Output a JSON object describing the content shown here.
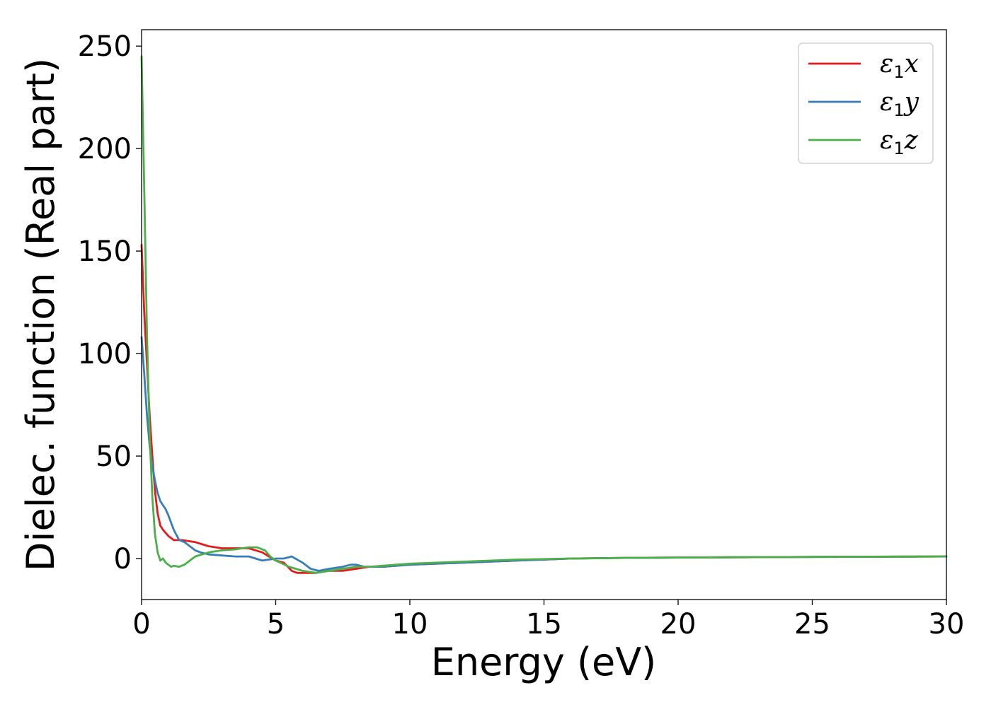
{
  "chart_data": {
    "type": "line",
    "xlabel": "Energy (eV)",
    "ylabel": "Dielec. function (Real part)",
    "xlim": [
      0,
      30
    ],
    "ylim": [
      -20,
      258
    ],
    "xticks": [
      0,
      5,
      10,
      15,
      20,
      25,
      30
    ],
    "yticks": [
      0,
      50,
      100,
      150,
      200,
      250
    ],
    "grid": false,
    "legend_position": "top-right",
    "series": [
      {
        "name": "ε1x",
        "legend": {
          "symbol": "ε",
          "sub": "1",
          "axis": "x"
        },
        "color": "#e41a1c",
        "points": [
          [
            0,
            153
          ],
          [
            0.1,
            120
          ],
          [
            0.2,
            95
          ],
          [
            0.3,
            70
          ],
          [
            0.4,
            50
          ],
          [
            0.5,
            33
          ],
          [
            0.6,
            22
          ],
          [
            0.7,
            16
          ],
          [
            0.8,
            14
          ],
          [
            1.0,
            11
          ],
          [
            1.2,
            9
          ],
          [
            1.5,
            9
          ],
          [
            2.0,
            8
          ],
          [
            2.5,
            6
          ],
          [
            3.0,
            5
          ],
          [
            3.5,
            5
          ],
          [
            4.0,
            5
          ],
          [
            4.5,
            3
          ],
          [
            5.0,
            -1
          ],
          [
            5.3,
            -2
          ],
          [
            5.6,
            -6
          ],
          [
            5.8,
            -7
          ],
          [
            6.0,
            -7
          ],
          [
            6.5,
            -7
          ],
          [
            7.0,
            -6
          ],
          [
            7.5,
            -6
          ],
          [
            8.0,
            -5
          ],
          [
            8.5,
            -4
          ],
          [
            9.0,
            -4
          ],
          [
            10,
            -3
          ],
          [
            12,
            -2
          ],
          [
            14,
            -1
          ],
          [
            16,
            0
          ],
          [
            18,
            0.3
          ],
          [
            20,
            0.5
          ],
          [
            25,
            0.8
          ],
          [
            30,
            1.0
          ]
        ]
      },
      {
        "name": "ε1y",
        "legend": {
          "symbol": "ε",
          "sub": "1",
          "axis": "y"
        },
        "color": "#377eb8",
        "points": [
          [
            0,
            108
          ],
          [
            0.1,
            90
          ],
          [
            0.2,
            70
          ],
          [
            0.3,
            55
          ],
          [
            0.4,
            45
          ],
          [
            0.5,
            38
          ],
          [
            0.6,
            32
          ],
          [
            0.7,
            28
          ],
          [
            0.8,
            26
          ],
          [
            0.9,
            24
          ],
          [
            1.0,
            21
          ],
          [
            1.2,
            14
          ],
          [
            1.4,
            9
          ],
          [
            1.6,
            8
          ],
          [
            1.8,
            6
          ],
          [
            2.0,
            4
          ],
          [
            2.2,
            3
          ],
          [
            2.5,
            2
          ],
          [
            3.0,
            1.5
          ],
          [
            3.5,
            1
          ],
          [
            4.0,
            1
          ],
          [
            4.5,
            -1
          ],
          [
            5.0,
            0
          ],
          [
            5.3,
            0
          ],
          [
            5.6,
            1
          ],
          [
            6.0,
            -2
          ],
          [
            6.3,
            -5
          ],
          [
            6.6,
            -6
          ],
          [
            7.0,
            -5
          ],
          [
            7.5,
            -4
          ],
          [
            7.8,
            -3
          ],
          [
            8.0,
            -3
          ],
          [
            8.3,
            -4
          ],
          [
            8.7,
            -4
          ],
          [
            9.0,
            -4
          ],
          [
            10,
            -3
          ],
          [
            12,
            -2
          ],
          [
            14,
            -1
          ],
          [
            16,
            0
          ],
          [
            18,
            0.3
          ],
          [
            20,
            0.5
          ],
          [
            25,
            0.8
          ],
          [
            30,
            1.0
          ]
        ]
      },
      {
        "name": "ε1z",
        "legend": {
          "symbol": "ε",
          "sub": "1",
          "axis": "z"
        },
        "color": "#4daf4a",
        "points": [
          [
            0,
            245
          ],
          [
            0.1,
            180
          ],
          [
            0.2,
            110
          ],
          [
            0.3,
            60
          ],
          [
            0.4,
            30
          ],
          [
            0.5,
            12
          ],
          [
            0.6,
            3
          ],
          [
            0.7,
            -1
          ],
          [
            0.8,
            0
          ],
          [
            0.9,
            -2
          ],
          [
            1.0,
            -3
          ],
          [
            1.1,
            -4
          ],
          [
            1.2,
            -3.5
          ],
          [
            1.4,
            -4
          ],
          [
            1.6,
            -3
          ],
          [
            1.8,
            -1
          ],
          [
            2.0,
            1
          ],
          [
            2.5,
            3
          ],
          [
            3.0,
            4
          ],
          [
            3.5,
            4.5
          ],
          [
            4.0,
            5.5
          ],
          [
            4.3,
            5.5
          ],
          [
            4.6,
            4
          ],
          [
            4.8,
            1
          ],
          [
            5.0,
            -1
          ],
          [
            5.5,
            -4
          ],
          [
            6.0,
            -6
          ],
          [
            6.5,
            -7
          ],
          [
            7.0,
            -6
          ],
          [
            7.5,
            -5
          ],
          [
            8.0,
            -4
          ],
          [
            8.5,
            -4
          ],
          [
            9.0,
            -3.5
          ],
          [
            10,
            -2.5
          ],
          [
            12,
            -1.5
          ],
          [
            14,
            -0.5
          ],
          [
            16,
            0
          ],
          [
            18,
            0.3
          ],
          [
            20,
            0.5
          ],
          [
            25,
            0.8
          ],
          [
            30,
            1.0
          ]
        ]
      }
    ]
  }
}
